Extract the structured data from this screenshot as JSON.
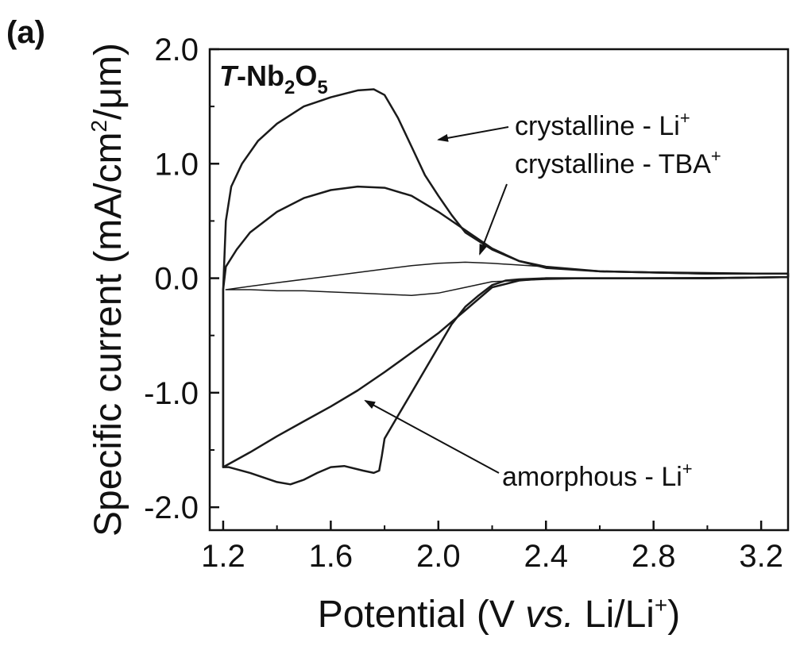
{
  "chart_data": {
    "type": "line",
    "panel_label": "(a)",
    "title": {
      "prefix": "T",
      "text": "-Nb",
      "sub1": "2",
      "mid": "O",
      "sub2": "5"
    },
    "xlabel": {
      "prefix": "Potential (V ",
      "italic": "vs.",
      "suffix": " Li/Li",
      "sup": "+",
      "close": ")"
    },
    "ylabel": {
      "prefix": "Specific current (mA/cm",
      "sup": "2",
      "suffix": "/μm)"
    },
    "xlim": [
      1.15,
      3.3
    ],
    "ylim": [
      -2.2,
      2.0
    ],
    "xticks": [
      1.2,
      1.6,
      2.0,
      2.4,
      2.8,
      3.2
    ],
    "xtick_labels": [
      "1.2",
      "1.6",
      "2.0",
      "2.4",
      "2.8",
      "3.2"
    ],
    "yticks": [
      -2.0,
      -1.0,
      0.0,
      1.0,
      2.0
    ],
    "ytick_labels": [
      "-2.0",
      "-1.0",
      "0.0",
      "1.0",
      "2.0"
    ],
    "grid": false,
    "series": [
      {
        "name": "crystalline - Li+",
        "label_text": "crystalline - Li",
        "label_sup": "+",
        "stroke_width": 2.5,
        "x": [
          1.2,
          1.21,
          1.23,
          1.27,
          1.33,
          1.4,
          1.5,
          1.6,
          1.7,
          1.76,
          1.8,
          1.85,
          1.9,
          1.95,
          2.0,
          2.05,
          2.1,
          2.2,
          2.3,
          2.4,
          2.6,
          2.8,
          3.0,
          3.3,
          3.3,
          3.0,
          2.8,
          2.6,
          2.4,
          2.3,
          2.25,
          2.2,
          2.15,
          2.1,
          2.05,
          2.0,
          1.95,
          1.9,
          1.85,
          1.8,
          1.79,
          1.78,
          1.76,
          1.72,
          1.65,
          1.6,
          1.55,
          1.5,
          1.45,
          1.4,
          1.3,
          1.22,
          1.2,
          1.2
        ],
        "y": [
          -0.1,
          0.5,
          0.8,
          1.0,
          1.2,
          1.35,
          1.5,
          1.58,
          1.64,
          1.65,
          1.6,
          1.4,
          1.15,
          0.9,
          0.72,
          0.55,
          0.4,
          0.25,
          0.15,
          0.1,
          0.06,
          0.05,
          0.04,
          0.04,
          0.01,
          0.0,
          0.0,
          0.0,
          0.0,
          -0.01,
          -0.02,
          -0.06,
          -0.15,
          -0.25,
          -0.4,
          -0.6,
          -0.8,
          -1.0,
          -1.2,
          -1.4,
          -1.55,
          -1.68,
          -1.7,
          -1.68,
          -1.64,
          -1.65,
          -1.7,
          -1.76,
          -1.8,
          -1.78,
          -1.7,
          -1.65,
          -1.65,
          -0.1
        ]
      },
      {
        "name": "crystalline - TBA+",
        "label_text": "crystalline - TBA",
        "label_sup": "+",
        "stroke_width": 1.5,
        "x": [
          1.21,
          1.3,
          1.4,
          1.5,
          1.6,
          1.7,
          1.8,
          1.9,
          2.0,
          2.1,
          2.2,
          2.4,
          2.6,
          3.3,
          3.3,
          2.6,
          2.4,
          2.2,
          2.1,
          2.0,
          1.9,
          1.8,
          1.7,
          1.6,
          1.5,
          1.4,
          1.3,
          1.21,
          1.21
        ],
        "y": [
          -0.1,
          -0.07,
          -0.04,
          -0.01,
          0.02,
          0.05,
          0.08,
          0.11,
          0.13,
          0.14,
          0.13,
          0.1,
          0.06,
          0.04,
          0.01,
          0.0,
          -0.01,
          -0.03,
          -0.08,
          -0.13,
          -0.15,
          -0.14,
          -0.13,
          -0.12,
          -0.11,
          -0.11,
          -0.1,
          -0.1,
          -0.1
        ]
      },
      {
        "name": "amorphous - Li+",
        "label_text": "amorphous - Li",
        "label_sup": "+",
        "stroke_width": 2.5,
        "x": [
          1.2,
          1.21,
          1.25,
          1.3,
          1.4,
          1.5,
          1.6,
          1.7,
          1.8,
          1.9,
          2.0,
          2.1,
          2.2,
          2.3,
          2.4,
          2.6,
          2.8,
          3.0,
          3.3,
          3.3,
          3.0,
          2.8,
          2.6,
          2.4,
          2.3,
          2.2,
          2.15,
          2.1,
          2.05,
          2.0,
          1.9,
          1.8,
          1.7,
          1.6,
          1.5,
          1.4,
          1.3,
          1.2,
          1.2
        ],
        "y": [
          -0.1,
          0.1,
          0.25,
          0.4,
          0.58,
          0.7,
          0.77,
          0.8,
          0.79,
          0.72,
          0.58,
          0.42,
          0.26,
          0.15,
          0.09,
          0.06,
          0.05,
          0.04,
          0.04,
          0.01,
          0.0,
          0.0,
          0.0,
          0.0,
          -0.02,
          -0.08,
          -0.18,
          -0.28,
          -0.38,
          -0.48,
          -0.65,
          -0.82,
          -0.98,
          -1.12,
          -1.25,
          -1.38,
          -1.52,
          -1.65,
          -0.1
        ]
      }
    ],
    "annotations": [
      {
        "target": "crystalline - Li+"
      },
      {
        "target": "crystalline - TBA+"
      },
      {
        "target": "amorphous - Li+"
      }
    ]
  }
}
